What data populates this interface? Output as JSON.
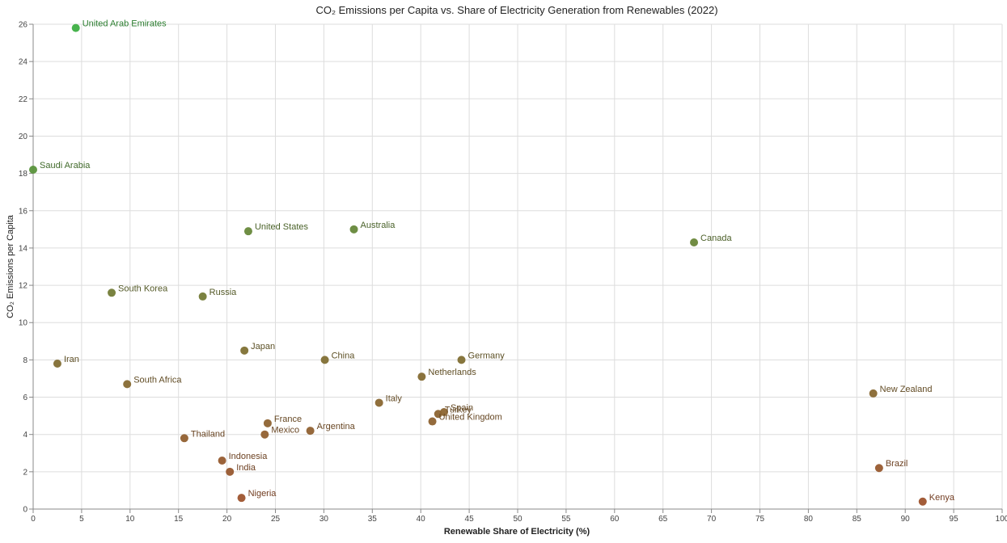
{
  "chart_data": {
    "type": "scatter",
    "title": "CO₂ Emissions per Capita vs. Share of Electricity Generation from Renewables (2022)",
    "xlabel": "Renewable Share of Electricity (%)",
    "ylabel": "CO₂ Emissions per Capita",
    "xlim": [
      0,
      100
    ],
    "ylim": [
      0,
      26
    ],
    "x_ticks": [
      0,
      5,
      10,
      15,
      20,
      25,
      30,
      35,
      40,
      45,
      50,
      55,
      60,
      65,
      70,
      75,
      80,
      85,
      90,
      95,
      100
    ],
    "y_ticks": [
      0,
      2,
      4,
      6,
      8,
      10,
      12,
      14,
      16,
      18,
      20,
      22,
      24,
      26
    ],
    "grid": true,
    "legend": "none",
    "color_scale": {
      "low": "#a0522d",
      "high": "#3cb043"
    },
    "points": [
      {
        "label": "United Arab Emirates",
        "x": 4.4,
        "y": 25.8
      },
      {
        "label": "Saudi Arabia",
        "x": 0.0,
        "y": 18.2
      },
      {
        "label": "United States",
        "x": 22.2,
        "y": 14.9
      },
      {
        "label": "Australia",
        "x": 33.1,
        "y": 15.0
      },
      {
        "label": "Canada",
        "x": 68.2,
        "y": 14.3
      },
      {
        "label": "South Korea",
        "x": 8.1,
        "y": 11.6
      },
      {
        "label": "Russia",
        "x": 17.5,
        "y": 11.4
      },
      {
        "label": "Japan",
        "x": 21.8,
        "y": 8.5
      },
      {
        "label": "China",
        "x": 30.1,
        "y": 8.0
      },
      {
        "label": "Germany",
        "x": 44.2,
        "y": 8.0
      },
      {
        "label": "Iran",
        "x": 2.5,
        "y": 7.8
      },
      {
        "label": "Netherlands",
        "x": 40.1,
        "y": 7.1
      },
      {
        "label": "South Africa",
        "x": 9.7,
        "y": 6.7
      },
      {
        "label": "New Zealand",
        "x": 86.7,
        "y": 6.2
      },
      {
        "label": "Italy",
        "x": 35.7,
        "y": 5.7
      },
      {
        "label": "Turkey",
        "x": 41.8,
        "y": 5.1
      },
      {
        "label": "Spain",
        "x": 42.4,
        "y": 5.2
      },
      {
        "label": "United Kingdom",
        "x": 41.2,
        "y": 4.7
      },
      {
        "label": "France",
        "x": 24.2,
        "y": 4.6
      },
      {
        "label": "Argentina",
        "x": 28.6,
        "y": 4.2
      },
      {
        "label": "Mexico",
        "x": 23.9,
        "y": 4.0
      },
      {
        "label": "Thailand",
        "x": 15.6,
        "y": 3.8
      },
      {
        "label": "Indonesia",
        "x": 19.5,
        "y": 2.6
      },
      {
        "label": "India",
        "x": 20.3,
        "y": 2.0
      },
      {
        "label": "Brazil",
        "x": 87.3,
        "y": 2.2
      },
      {
        "label": "Nigeria",
        "x": 21.5,
        "y": 0.6
      },
      {
        "label": "Kenya",
        "x": 91.8,
        "y": 0.4
      }
    ]
  }
}
